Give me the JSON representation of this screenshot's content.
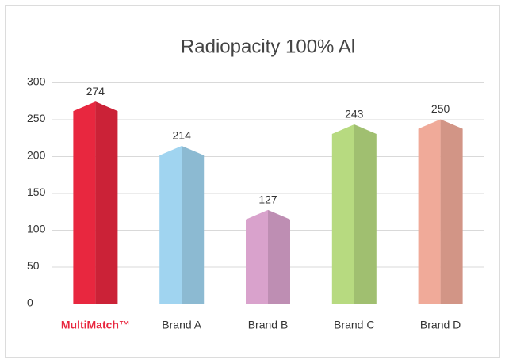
{
  "chart_data": {
    "type": "bar",
    "title": "Radiopacity 100% Al",
    "categories": [
      "MultiMatch™",
      "Brand A",
      "Brand B",
      "Brand C",
      "Brand D"
    ],
    "values": [
      274,
      214,
      127,
      243,
      250
    ],
    "colors": [
      "#e8273f",
      "#a0d4f0",
      "#d9a2cc",
      "#b7da80",
      "#f0aa99"
    ],
    "category_label_colors": [
      "#e8273f",
      "#333333",
      "#333333",
      "#333333",
      "#333333"
    ],
    "ylim": [
      0,
      300
    ],
    "yticks": [
      0,
      50,
      100,
      150,
      200,
      250,
      300
    ],
    "grid": true
  }
}
